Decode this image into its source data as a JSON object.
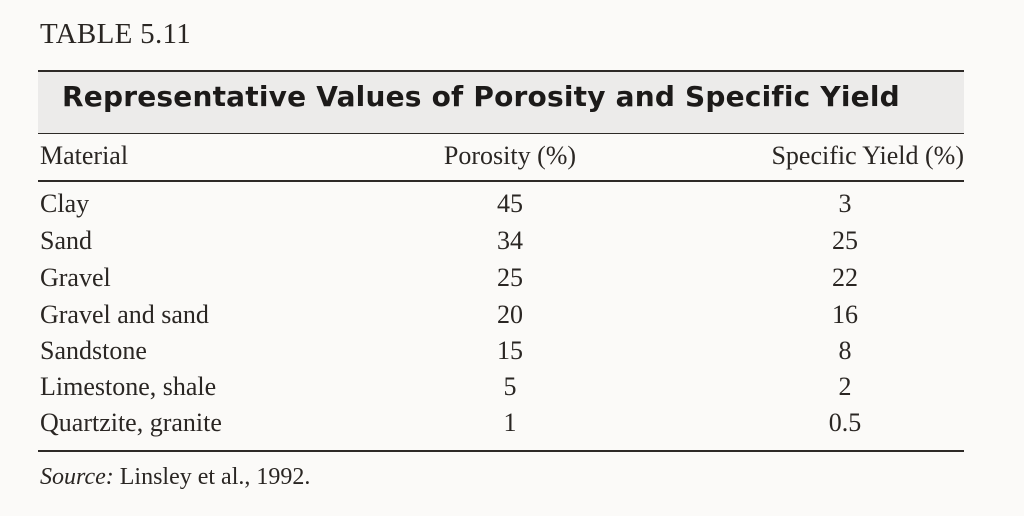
{
  "table": {
    "label": "TABLE 5.11",
    "caption": "Representative Values of Porosity and Specific Yield",
    "columns": [
      "Material",
      "Porosity (%)",
      "Specific Yield (%)"
    ],
    "rows": [
      {
        "material": "Clay",
        "porosity": "45",
        "specific_yield": "3"
      },
      {
        "material": "Sand",
        "porosity": "34",
        "specific_yield": "25"
      },
      {
        "material": "Gravel",
        "porosity": "25",
        "specific_yield": "22"
      },
      {
        "material": "Gravel and sand",
        "porosity": "20",
        "specific_yield": "16"
      },
      {
        "material": "Sandstone",
        "porosity": "15",
        "specific_yield": "8"
      },
      {
        "material": "Limestone, shale",
        "porosity": "5",
        "specific_yield": "2"
      },
      {
        "material": "Quartzite, granite",
        "porosity": "1",
        "specific_yield": "0.5"
      }
    ],
    "source": {
      "label": "Source:",
      "text": "Linsley et al., 1992."
    }
  }
}
